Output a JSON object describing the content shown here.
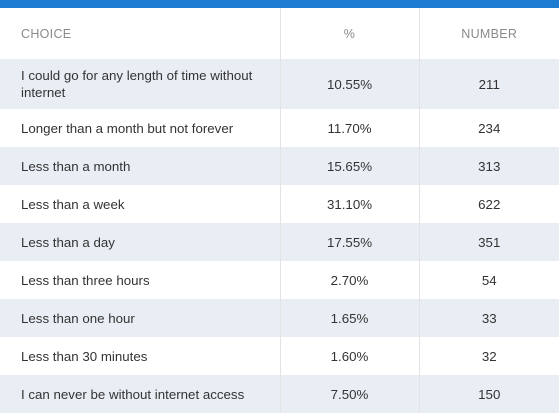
{
  "chart_data": {
    "type": "table",
    "columns": [
      "CHOICE",
      "%",
      "NUMBER"
    ],
    "rows": [
      {
        "choice": "I could go for any length of time without internet",
        "percent": "10.55%",
        "number": "211"
      },
      {
        "choice": "Longer than a month but not forever",
        "percent": "11.70%",
        "number": "234"
      },
      {
        "choice": "Less than a month",
        "percent": "15.65%",
        "number": "313"
      },
      {
        "choice": "Less than a week",
        "percent": "31.10%",
        "number": "622"
      },
      {
        "choice": "Less than a day",
        "percent": "17.55%",
        "number": "351"
      },
      {
        "choice": "Less than three hours",
        "percent": "2.70%",
        "number": "54"
      },
      {
        "choice": "Less than one hour",
        "percent": "1.65%",
        "number": "33"
      },
      {
        "choice": "Less than 30 minutes",
        "percent": "1.60%",
        "number": "32"
      },
      {
        "choice": "I can never be without internet access",
        "percent": "7.50%",
        "number": "150"
      }
    ]
  },
  "colors": {
    "accent_bar": "#1e7bd2",
    "stripe": "#e9eef4"
  }
}
